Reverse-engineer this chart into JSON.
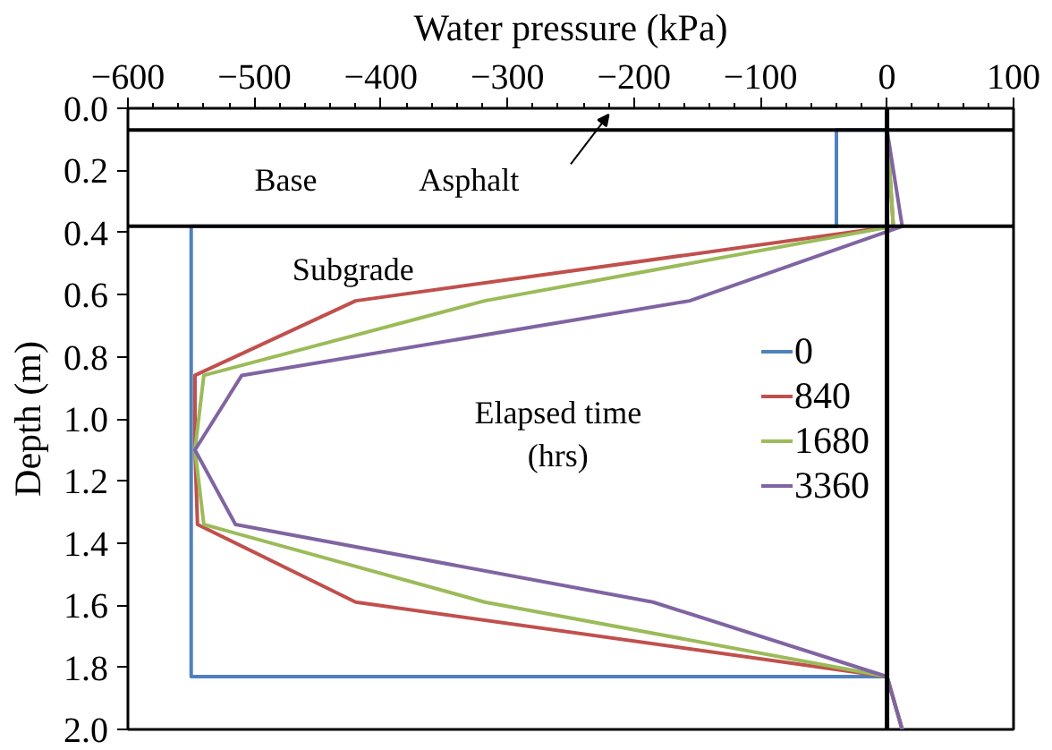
{
  "chart_data": {
    "type": "line",
    "xlabel": "Water pressure (kPa)",
    "ylabel": "Depth (m)",
    "xlim": [
      -600,
      100
    ],
    "xticks": [
      -600,
      -500,
      -400,
      -300,
      -200,
      -100,
      0,
      100
    ],
    "ylim": [
      2.0,
      0.0
    ],
    "yticks": [
      {
        "value": 0,
        "label": "0.0"
      },
      0.2,
      0.4,
      0.6,
      0.8,
      {
        "value": 1,
        "label": "1.0"
      },
      1.2,
      1.4,
      1.6,
      1.8,
      {
        "value": 2,
        "label": "2.0"
      }
    ],
    "grid": false,
    "legend": "right",
    "legend_title": "Elapsed time\n(hrs)",
    "series": [
      {
        "name": "0",
        "color": "#4f81bd",
        "x": [
          0,
          -40,
          -40,
          -550,
          -550,
          0,
          12
        ],
        "values": [
          0.07,
          0.07,
          0.38,
          0.38,
          1.83,
          1.83,
          2.0
        ]
      },
      {
        "name": "840",
        "color": "#c0504d",
        "x": [
          0,
          5,
          -420,
          -547,
          -547,
          -545,
          -420,
          0,
          12
        ],
        "values": [
          0.07,
          0.38,
          0.62,
          0.86,
          1.1,
          1.34,
          1.59,
          1.83,
          2.0
        ]
      },
      {
        "name": "1680",
        "color": "#9bbb59",
        "x": [
          0,
          5,
          -318,
          -540,
          -547,
          -540,
          -318,
          0,
          12
        ],
        "values": [
          0.07,
          0.38,
          0.62,
          0.86,
          1.1,
          1.34,
          1.59,
          1.83,
          2.0
        ]
      },
      {
        "name": "3360",
        "color": "#8064a2",
        "x": [
          0,
          12,
          -156,
          -510,
          -547,
          -515,
          -185,
          0,
          12
        ],
        "values": [
          0.07,
          0.38,
          0.62,
          0.86,
          1.1,
          1.34,
          1.59,
          1.83,
          2.0
        ]
      }
    ],
    "ref_lines": [
      {
        "axis": "y",
        "value": 0.07,
        "color": "#000000"
      },
      {
        "axis": "y",
        "value": 0.38,
        "color": "#000000"
      },
      {
        "axis": "x",
        "value": 0,
        "color": "#000000"
      }
    ],
    "annotations": [
      "Base",
      "Asphalt",
      "Subgrade"
    ]
  }
}
